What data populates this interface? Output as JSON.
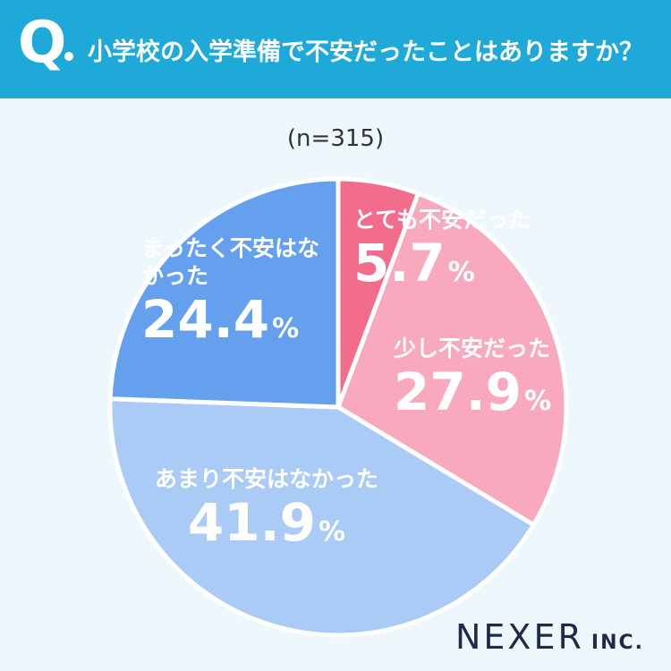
{
  "header": {
    "q_mark": "Q",
    "question": "小学校の入学準備で不安だったことはありますか？"
  },
  "sample_size": "(n=315)",
  "percent_sign": "%",
  "chart_data": {
    "type": "pie",
    "title": "小学校の入学準備で不安だったことはありますか？",
    "n": 315,
    "slices": [
      {
        "label": "とても不安だった",
        "value": 5.7,
        "value_text": "5.7",
        "color": "#f26d8c"
      },
      {
        "label": "少し不安だった",
        "value": 27.9,
        "value_text": "27.9",
        "color": "#f9a9bd"
      },
      {
        "label": "あまり不安はなかった",
        "value": 41.9,
        "value_text": "41.9",
        "color": "#abcbf7"
      },
      {
        "label": "まったく不安はなかった",
        "value": 24.4,
        "value_text": "24.4",
        "color": "#64a0ee"
      }
    ],
    "start": "12 o'clock",
    "direction": "clockwise",
    "legend": "none"
  },
  "logo": {
    "brand": "NEXER",
    "suffix": "INC."
  },
  "colors": {
    "header": "#1fa9d8",
    "background": "#eef8fc",
    "logo": "#1e2a4a"
  }
}
